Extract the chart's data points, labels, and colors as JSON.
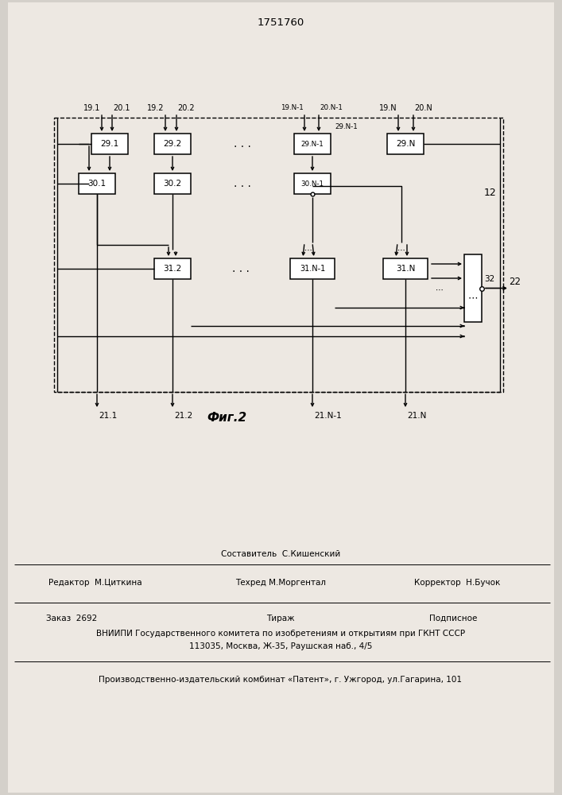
{
  "title": "1751760",
  "fig_label": "Фиг.2",
  "bg_color": "#e8e4e0",
  "footer": {
    "sostavitel": "Составитель  С.Кишенский",
    "redaktor": "Редактор  М.Циткина",
    "tehred": "Техред М.Моргентал",
    "korrektor": "Корректор  Н.Бучок",
    "zakaz": "Заказ  2692",
    "tirazh": "Тираж",
    "podpisnoe": "Подписное",
    "vniipи": "ВНИИПИ Государственного комитета по изобретениям и открытиям при ГКНТ СССР",
    "address": "113035, Москва, Ж-35, Раушская наб., 4/5",
    "patent": "Производственно-издательский комбинат «Патент», г. Ужгород, ул.Гагарина, 101"
  }
}
